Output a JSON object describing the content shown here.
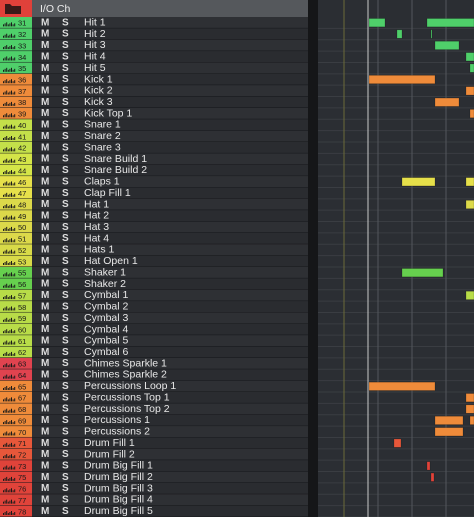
{
  "header": {
    "title": "I/O Ch"
  },
  "tracks": [
    {
      "number": 31,
      "mute": "M",
      "solo": "S",
      "name": "Hit 1"
    },
    {
      "number": 32,
      "mute": "M",
      "solo": "S",
      "name": "Hit 2"
    },
    {
      "number": 33,
      "mute": "M",
      "solo": "S",
      "name": "Hit 3"
    },
    {
      "number": 34,
      "mute": "M",
      "solo": "S",
      "name": "Hit 4"
    },
    {
      "number": 35,
      "mute": "M",
      "solo": "S",
      "name": "Hit 5"
    },
    {
      "number": 36,
      "mute": "M",
      "solo": "S",
      "name": "Kick 1"
    },
    {
      "number": 37,
      "mute": "M",
      "solo": "S",
      "name": "Kick 2"
    },
    {
      "number": 38,
      "mute": "M",
      "solo": "S",
      "name": "Kick 3"
    },
    {
      "number": 39,
      "mute": "M",
      "solo": "S",
      "name": "Kick Top 1"
    },
    {
      "number": 40,
      "mute": "M",
      "solo": "S",
      "name": "Snare 1"
    },
    {
      "number": 41,
      "mute": "M",
      "solo": "S",
      "name": "Snare 2"
    },
    {
      "number": 42,
      "mute": "M",
      "solo": "S",
      "name": "Snare 3"
    },
    {
      "number": 43,
      "mute": "M",
      "solo": "S",
      "name": "Snare Build 1"
    },
    {
      "number": 44,
      "mute": "M",
      "solo": "S",
      "name": "Snare Build 2"
    },
    {
      "number": 46,
      "mute": "M",
      "solo": "S",
      "name": "Claps 1"
    },
    {
      "number": 47,
      "mute": "M",
      "solo": "S",
      "name": "Clap Fill 1"
    },
    {
      "number": 48,
      "mute": "M",
      "solo": "S",
      "name": "Hat 1"
    },
    {
      "number": 49,
      "mute": "M",
      "solo": "S",
      "name": "Hat 2"
    },
    {
      "number": 50,
      "mute": "M",
      "solo": "S",
      "name": "Hat 3"
    },
    {
      "number": 51,
      "mute": "M",
      "solo": "S",
      "name": "Hat 4"
    },
    {
      "number": 52,
      "mute": "M",
      "solo": "S",
      "name": "Hats 1"
    },
    {
      "number": 53,
      "mute": "M",
      "solo": "S",
      "name": "Hat Open 1"
    },
    {
      "number": 55,
      "mute": "M",
      "solo": "S",
      "name": "Shaker 1"
    },
    {
      "number": 56,
      "mute": "M",
      "solo": "S",
      "name": "Shaker 2"
    },
    {
      "number": 57,
      "mute": "M",
      "solo": "S",
      "name": "Cymbal 1"
    },
    {
      "number": 58,
      "mute": "M",
      "solo": "S",
      "name": "Cymbal 2"
    },
    {
      "number": 59,
      "mute": "M",
      "solo": "S",
      "name": "Cymbal 3"
    },
    {
      "number": 60,
      "mute": "M",
      "solo": "S",
      "name": "Cymbal 4"
    },
    {
      "number": 61,
      "mute": "M",
      "solo": "S",
      "name": "Cymbal 5"
    },
    {
      "number": 62,
      "mute": "M",
      "solo": "S",
      "name": "Cymbal 6"
    },
    {
      "number": 63,
      "mute": "M",
      "solo": "S",
      "name": "Chimes Sparkle 1"
    },
    {
      "number": 64,
      "mute": "M",
      "solo": "S",
      "name": "Chimes Sparkle 2"
    },
    {
      "number": 65,
      "mute": "M",
      "solo": "S",
      "name": "Percussions Loop 1"
    },
    {
      "number": 67,
      "mute": "M",
      "solo": "S",
      "name": "Percussions Top 1"
    },
    {
      "number": 68,
      "mute": "M",
      "solo": "S",
      "name": "Percussions Top 2"
    },
    {
      "number": 69,
      "mute": "M",
      "solo": "S",
      "name": "Percussions 1"
    },
    {
      "number": 70,
      "mute": "M",
      "solo": "S",
      "name": "Percussions 2"
    },
    {
      "number": 71,
      "mute": "M",
      "solo": "S",
      "name": "Drum Fill 1"
    },
    {
      "number": 72,
      "mute": "M",
      "solo": "S",
      "name": "Drum Fill 2"
    },
    {
      "number": 73,
      "mute": "M",
      "solo": "S",
      "name": "Drum Big Fill 1"
    },
    {
      "number": 75,
      "mute": "M",
      "solo": "S",
      "name": "Drum Big Fill 2"
    },
    {
      "number": 76,
      "mute": "M",
      "solo": "S",
      "name": "Drum Big Fill 3"
    },
    {
      "number": 77,
      "mute": "M",
      "solo": "S",
      "name": "Drum Big Fill 4"
    },
    {
      "number": 78,
      "mute": "M",
      "solo": "S",
      "name": "Drum Big Fill 5"
    }
  ]
}
